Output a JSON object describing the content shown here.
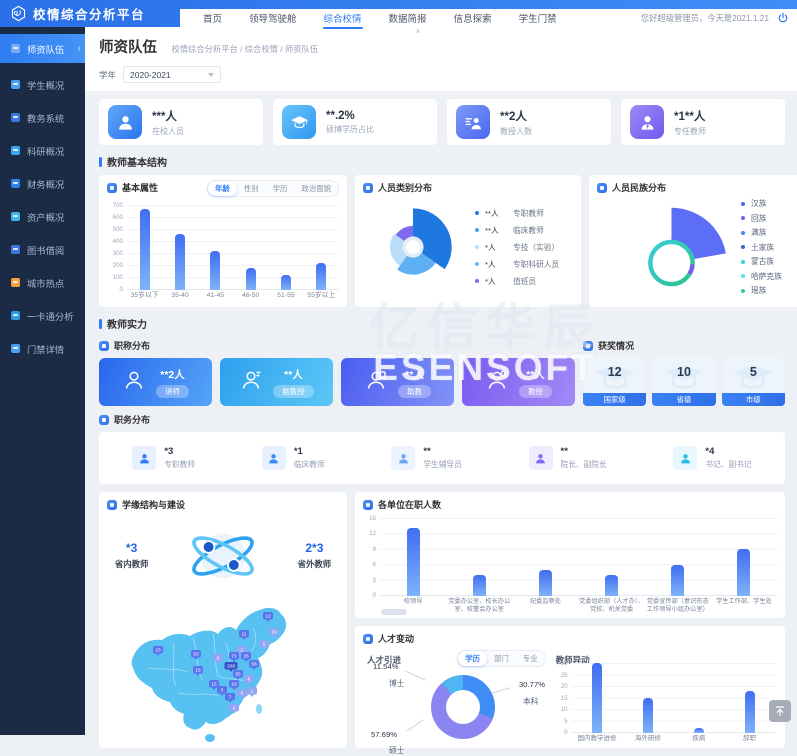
{
  "app": {
    "logo_title": "校情综合分析平台",
    "greeting": "您好超级管理员，今天是2021.1.21"
  },
  "nav": {
    "items": [
      {
        "label": "首页",
        "active": false
      },
      {
        "label": "领导驾驶舱",
        "active": false
      },
      {
        "label": "综合校情",
        "active": true
      },
      {
        "label": "数据简报",
        "active": false
      },
      {
        "label": "信息探索",
        "active": false
      },
      {
        "label": "学生门禁",
        "active": false
      }
    ]
  },
  "sidebar": {
    "items": [
      {
        "label": "师资队伍",
        "icon": "teachers-icon",
        "color": "#ffffff",
        "active": true
      },
      {
        "label": "学生概况",
        "icon": "students-icon",
        "color": "#4aa0f2",
        "active": false
      },
      {
        "label": "教务系统",
        "icon": "academic-system-icon",
        "color": "#3a78e0",
        "active": false
      },
      {
        "label": "科研概况",
        "icon": "research-icon",
        "color": "#37a8f0",
        "active": false
      },
      {
        "label": "财务概况",
        "icon": "finance-icon",
        "color": "#2f80e8",
        "active": false
      },
      {
        "label": "资产概况",
        "icon": "assets-icon",
        "color": "#3fb6e8",
        "active": false
      },
      {
        "label": "图书借阅",
        "icon": "library-icon",
        "color": "#3a78e0",
        "active": false
      },
      {
        "label": "城市热点",
        "icon": "city-hotspot-icon",
        "color": "#f5a23c",
        "active": false
      },
      {
        "label": "一卡通分析",
        "icon": "campus-card-icon",
        "color": "#2f9ae0",
        "active": false
      },
      {
        "label": "门禁详情",
        "icon": "access-control-icon",
        "color": "#4aa0f2",
        "active": false
      }
    ]
  },
  "page": {
    "title": "师资队伍",
    "breadcrumb": "校情综合分析平台 / 综合校情 / 师资队伍",
    "year_label": "学年",
    "year_value": "2020-2021"
  },
  "kpis": [
    {
      "value": "***人",
      "label": "在校人员",
      "icon": "user-icon"
    },
    {
      "value": "**.2%",
      "label": "硕博学历占比",
      "icon": "graduation-cap-icon"
    },
    {
      "value": "**2人",
      "label": "教授人数",
      "icon": "professor-list-icon"
    },
    {
      "value": "*1**人",
      "label": "专任教师",
      "icon": "teacher-tie-icon"
    }
  ],
  "basic_section": {
    "title": "教师基本结构"
  },
  "basic_panel": {
    "title": "基本属性",
    "tabs": [
      {
        "label": "年龄",
        "active": true
      },
      {
        "label": "性别",
        "active": false
      },
      {
        "label": "学历",
        "active": false
      },
      {
        "label": "政治面貌",
        "active": false
      }
    ],
    "chart": {
      "type": "bar",
      "categories": [
        "35岁以下",
        "35-40",
        "41-45",
        "46-50",
        "51-55",
        "55岁以上"
      ],
      "values": [
        670,
        460,
        320,
        185,
        125,
        220
      ],
      "ylim": [
        0,
        700
      ],
      "ystep": 100
    }
  },
  "category_panel": {
    "title": "人员类别分布",
    "legend": [
      {
        "label": "专职教师",
        "value": "**人",
        "color": "#1f78e0"
      },
      {
        "label": "临床教师",
        "value": "**人",
        "color": "#4aa3ee"
      },
      {
        "label": "专技（实验）",
        "value": "*人",
        "color": "#b9dcf9"
      },
      {
        "label": "专职科研人员",
        "value": "*人",
        "color": "#6db3f2"
      },
      {
        "label": "值班员",
        "value": "*人",
        "color": "#7d6bf0"
      }
    ]
  },
  "ethnic_panel": {
    "title": "人员民族分布",
    "legend": [
      {
        "label": "汉族",
        "value": "*人",
        "color": "#4a6cf3"
      },
      {
        "label": "回族",
        "value": "*人",
        "color": "#7a5ef0"
      },
      {
        "label": "满族",
        "value": "*人",
        "color": "#3f8af2"
      },
      {
        "label": "土家族",
        "value": "*人",
        "color": "#2f6fd0"
      },
      {
        "label": "蒙古族",
        "value": "*人",
        "color": "#36d1dc"
      },
      {
        "label": "哈萨克族",
        "value": "*人",
        "color": "#58e0e8"
      },
      {
        "label": "瑶族",
        "value": "*人",
        "color": "#2ecc9a"
      }
    ]
  },
  "strength_section": {
    "title": "教师实力"
  },
  "rank_panel": {
    "title": "职称分布",
    "cards": [
      {
        "value": "**2人",
        "badge": "讲师"
      },
      {
        "value": "**人",
        "badge": "副教授"
      },
      {
        "value": "**人",
        "badge": "助教"
      },
      {
        "value": "**人",
        "badge": "教授"
      }
    ]
  },
  "award_panel": {
    "title": "获奖情况",
    "items": [
      {
        "value": "12",
        "label": "国家级"
      },
      {
        "value": "10",
        "label": "省级"
      },
      {
        "value": "5",
        "label": "市级"
      }
    ]
  },
  "duty_panel": {
    "title": "职务分布",
    "items": [
      {
        "value": "*3",
        "label": "专职教师",
        "bg": "#e7f0fe",
        "fg": "#2f7cf6"
      },
      {
        "value": "*1",
        "label": "临床教师",
        "bg": "#e7f0fe",
        "fg": "#3b8cf0"
      },
      {
        "value": "**",
        "label": "学生辅导员",
        "bg": "#eaf3fe",
        "fg": "#6aa8f5"
      },
      {
        "value": "**",
        "label": "院长、副院长",
        "bg": "#eeecfd",
        "fg": "#7d6bf0"
      },
      {
        "value": "*4",
        "label": "书记、副书记",
        "bg": "#e6f7fd",
        "fg": "#29b8e8"
      }
    ]
  },
  "origin_panel": {
    "title": "学缘结构与建设",
    "in_value": "*3",
    "in_label": "省内教师",
    "out_value": "2*3",
    "out_label": "省外教师",
    "map_markers": [
      {
        "n": "23",
        "x": 40,
        "y": 56
      },
      {
        "n": "53",
        "x": 78,
        "y": 60
      },
      {
        "n": "16",
        "x": 80,
        "y": 76
      },
      {
        "n": "15",
        "x": 96,
        "y": 90
      },
      {
        "n": "3",
        "x": 104,
        "y": 96
      },
      {
        "n": "8",
        "x": 100,
        "y": 64,
        "light": true
      },
      {
        "n": "11",
        "x": 126,
        "y": 40
      },
      {
        "n": "12",
        "x": 150,
        "y": 22
      },
      {
        "n": "10",
        "x": 156,
        "y": 38,
        "light": true
      },
      {
        "n": "5",
        "x": 146,
        "y": 50,
        "light": true
      },
      {
        "n": "1",
        "x": 124,
        "y": 56,
        "light": true
      },
      {
        "n": "71",
        "x": 116,
        "y": 62
      },
      {
        "n": "26",
        "x": 128,
        "y": 62
      },
      {
        "n": "208",
        "x": 113,
        "y": 72,
        "dark": true
      },
      {
        "n": "55",
        "x": 120,
        "y": 80
      },
      {
        "n": "58",
        "x": 136,
        "y": 70
      },
      {
        "n": "19",
        "x": 116,
        "y": 90
      },
      {
        "n": "6",
        "x": 131,
        "y": 85,
        "light": true
      },
      {
        "n": "7",
        "x": 112,
        "y": 103
      },
      {
        "n": "8",
        "x": 124,
        "y": 99,
        "light": true
      },
      {
        "n": "2",
        "x": 116,
        "y": 114,
        "light": true
      },
      {
        "n": "2",
        "x": 134,
        "y": 97,
        "light": true
      }
    ]
  },
  "units_panel": {
    "title": "各单位在职人数",
    "chart": {
      "type": "bar",
      "categories": [
        "校领导",
        "党委办公室、校长办公室、校董会办公室",
        "纪委监察处",
        "党委组织部（人才办）、党校、机关党委",
        "党委宣传部（意识形态工作领导小组办公室）",
        "学生工作部、学生处"
      ],
      "values": [
        13,
        4,
        5,
        4,
        6,
        9
      ],
      "ylim": [
        0,
        15
      ],
      "ystep": 3
    }
  },
  "talent_panel": {
    "title": "人才变动",
    "intro": {
      "title": "人才引进",
      "tabs": [
        {
          "label": "学历",
          "active": true
        },
        {
          "label": "部门",
          "active": false
        },
        {
          "label": "专业",
          "active": false
        }
      ],
      "chart": {
        "type": "pie",
        "slices": [
          {
            "label": "本科",
            "pct": 30.77,
            "color": "#3f8df5"
          },
          {
            "label": "硕士",
            "pct": 57.69,
            "color": "#8a85f1"
          },
          {
            "label": "博士",
            "pct": 11.54,
            "color": "#4db6f3"
          }
        ],
        "callouts": [
          {
            "pct": "11.54%",
            "label": "博士"
          },
          {
            "pct": "30.77%",
            "label": "本科"
          },
          {
            "pct": "57.69%",
            "label": "硕士"
          }
        ]
      }
    },
    "change": {
      "title": "教师异动",
      "chart": {
        "type": "bar",
        "categories": [
          "国内教学进修",
          "海外研修",
          "疾病",
          "辞职"
        ],
        "values": [
          30,
          15,
          2,
          18
        ],
        "ylim": [
          0,
          30
        ],
        "ystep": 5
      }
    }
  },
  "watermark": {
    "line1": "亿信华辰",
    "line2": "ESENSOFT"
  }
}
